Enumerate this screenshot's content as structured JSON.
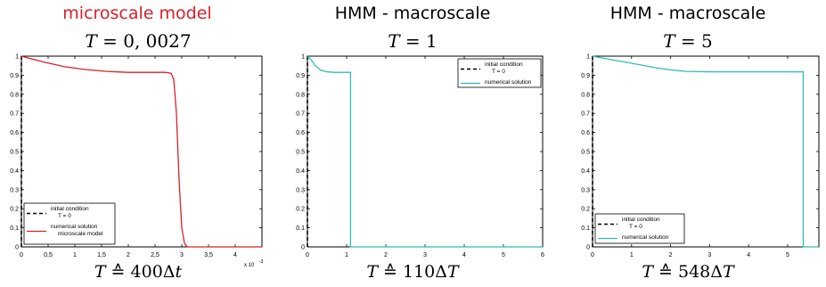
{
  "colors": {
    "red": "#d8202a",
    "teal": "#33bbb4",
    "black": "#000000"
  },
  "chart_data": [
    {
      "type": "line",
      "title_line1": "microscale model",
      "title_line2": {
        "symbol": "T",
        "rest": " = 0, 0027"
      },
      "footer": {
        "symbol": "T",
        "op": " ≙ 400Δ",
        "var": "t"
      },
      "xlim": [
        0,
        0.0045
      ],
      "ylim": [
        0,
        1
      ],
      "x_ticks": [
        0,
        0.0005,
        0.001,
        0.0015,
        0.002,
        0.0025,
        0.003,
        0.0035,
        0.004
      ],
      "x_tick_labels": [
        "0",
        "0,5",
        "1",
        "1,5",
        "2",
        "2,5",
        "3",
        "3,5",
        "4"
      ],
      "x_exponent_label": "x 10",
      "x_exponent_power": "-3",
      "y_ticks": [
        0,
        0.1,
        0.2,
        0.3,
        0.4,
        0.5,
        0.6,
        0.7,
        0.8,
        0.9,
        1
      ],
      "y_tick_labels": [
        "0",
        "0.1",
        "0.2",
        "0.3",
        "0.4",
        "0.5",
        "0.6",
        "0.7",
        "0.8",
        "0.9",
        "1"
      ],
      "legend_position": "bottom-left",
      "series": [
        {
          "name": "initial condition T = 0",
          "legend_lines": [
            "initial condition",
            "T = 0"
          ],
          "style": "dashed",
          "color": "#000000",
          "x": [
            0,
            0
          ],
          "y": [
            0,
            1
          ]
        },
        {
          "name": "numerical solution microscale model",
          "legend_lines": [
            "numerical solution",
            "microscale model"
          ],
          "style": "solid",
          "color": "#d8202a",
          "x": [
            0,
            0.0004,
            0.0008,
            0.0012,
            0.0016,
            0.002,
            0.0024,
            0.0027,
            0.0028,
            0.00285,
            0.0029,
            0.00295,
            0.003,
            0.00305,
            0.0031,
            0.0045
          ],
          "y": [
            1,
            0.97,
            0.945,
            0.93,
            0.92,
            0.915,
            0.915,
            0.915,
            0.91,
            0.88,
            0.7,
            0.35,
            0.1,
            0.02,
            0,
            0
          ]
        }
      ]
    },
    {
      "type": "line",
      "title_line1": "HMM - macroscale",
      "title_line2": {
        "symbol": "T",
        "rest": " = 1"
      },
      "footer": {
        "symbol": "T",
        "op": " ≙ 110Δ",
        "var": "T"
      },
      "xlim": [
        0,
        6
      ],
      "ylim": [
        0,
        1
      ],
      "x_ticks": [
        0,
        1,
        2,
        3,
        4,
        5,
        6
      ],
      "x_tick_labels": [
        "0",
        "1",
        "2",
        "3",
        "4",
        "5",
        "6"
      ],
      "y_ticks": [
        0,
        0.1,
        0.2,
        0.3,
        0.4,
        0.5,
        0.6,
        0.7,
        0.8,
        0.9,
        1
      ],
      "y_tick_labels": [
        "0",
        "0.1",
        "0.2",
        "0.3",
        "0.4",
        "0.5",
        "0.6",
        "0.7",
        "0.8",
        "0.9",
        "1"
      ],
      "legend_position": "top-right",
      "series": [
        {
          "name": "initial condition T = 0",
          "legend_lines": [
            "initial condition",
            "T = 0"
          ],
          "style": "dashed",
          "color": "#000000",
          "x": [
            0,
            0
          ],
          "y": [
            0,
            1
          ]
        },
        {
          "name": "numerical solution",
          "legend_lines": [
            "numerical solution"
          ],
          "style": "solid",
          "color": "#33bbb4",
          "x": [
            0,
            0.1,
            0.2,
            0.35,
            0.5,
            0.7,
            0.9,
            1.1,
            1.1,
            6
          ],
          "y": [
            1,
            0.98,
            0.95,
            0.925,
            0.918,
            0.915,
            0.915,
            0.915,
            0,
            0
          ]
        }
      ]
    },
    {
      "type": "line",
      "title_line1": "HMM - macroscale",
      "title_line2": {
        "symbol": "T",
        "rest": " = 5"
      },
      "footer": {
        "symbol": "T",
        "op": " ≙ 548Δ",
        "var": "T"
      },
      "xlim": [
        0,
        5.8
      ],
      "ylim": [
        0,
        1
      ],
      "x_ticks": [
        0,
        1,
        2,
        3,
        4,
        5
      ],
      "x_tick_labels": [
        "0",
        "1",
        "2",
        "3",
        "4",
        "5"
      ],
      "y_ticks": [
        0,
        0.1,
        0.2,
        0.3,
        0.4,
        0.5,
        0.6,
        0.7,
        0.8,
        0.9,
        1
      ],
      "y_tick_labels": [
        "0",
        "0.1",
        "0.2",
        "0.3",
        "0.4",
        "0.5",
        "0.6",
        "0.7",
        "0.8",
        "0.9",
        "1"
      ],
      "legend_position": "bottom-left",
      "series": [
        {
          "name": "initial condition T = 0",
          "legend_lines": [
            "initial condition",
            "T = 0"
          ],
          "style": "dashed",
          "color": "#000000",
          "x": [
            0,
            0
          ],
          "y": [
            0,
            1
          ]
        },
        {
          "name": "numerical solution",
          "legend_lines": [
            "numerical solution"
          ],
          "style": "solid",
          "color": "#33bbb4",
          "x": [
            0,
            0.4,
            0.8,
            1.2,
            1.6,
            2.0,
            2.4,
            3.0,
            4.0,
            5.4,
            5.4,
            5.8
          ],
          "y": [
            1,
            0.985,
            0.97,
            0.955,
            0.94,
            0.928,
            0.92,
            0.918,
            0.918,
            0.918,
            0,
            0
          ]
        }
      ]
    }
  ]
}
